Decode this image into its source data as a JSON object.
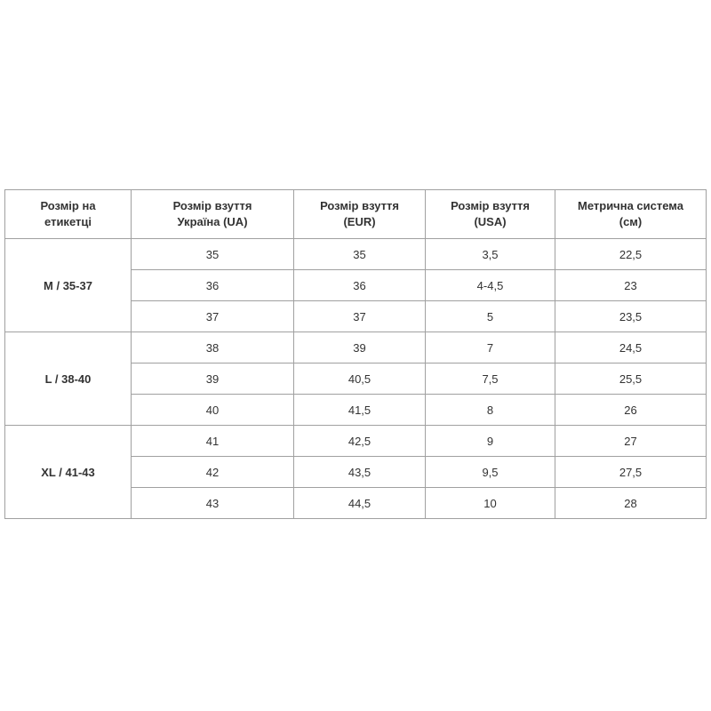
{
  "headers": [
    [
      "Розмір на",
      "етикетці"
    ],
    [
      "Розмір взуття",
      "Україна (UA)"
    ],
    [
      "Розмір взуття",
      "(EUR)"
    ],
    [
      "Розмір взуття",
      "(USA)"
    ],
    [
      "Метрична система",
      "(см)"
    ]
  ],
  "groups": [
    {
      "label": "M / 35-37",
      "rows": [
        [
          "35",
          "35",
          "3,5",
          "22,5"
        ],
        [
          "36",
          "36",
          "4-4,5",
          "23"
        ],
        [
          "37",
          "37",
          "5",
          "23,5"
        ]
      ]
    },
    {
      "label": "L / 38-40",
      "rows": [
        [
          "38",
          "39",
          "7",
          "24,5"
        ],
        [
          "39",
          "40,5",
          "7,5",
          "25,5"
        ],
        [
          "40",
          "41,5",
          "8",
          "26"
        ]
      ]
    },
    {
      "label": "XL / 41-43",
      "rows": [
        [
          "41",
          "42,5",
          "9",
          "27"
        ],
        [
          "42",
          "43,5",
          "9,5",
          "27,5"
        ],
        [
          "43",
          "44,5",
          "10",
          "28"
        ]
      ]
    }
  ]
}
